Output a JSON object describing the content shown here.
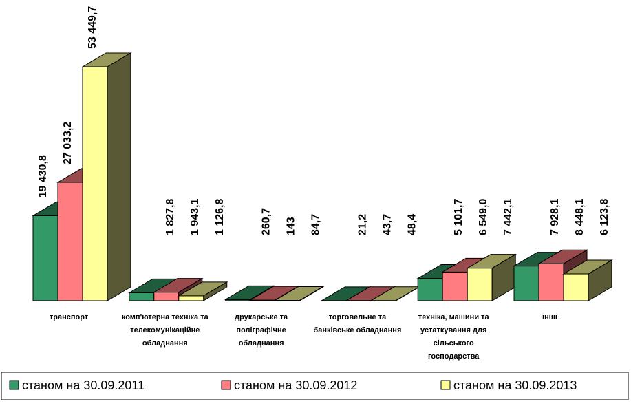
{
  "chart_data": {
    "type": "bar3d",
    "categories": [
      "транспорт",
      "комп'ютерна техніка та телекомунікаційне обладнання",
      "друкарське та поліграфічне обладнання",
      "торговельне та банківське обладнання",
      "техніка, машини та устаткування для сільського господарства",
      "інші"
    ],
    "series": [
      {
        "name": "станом на 30.09.2011",
        "color": "#339966",
        "values": [
          19430.8,
          1827.8,
          260.7,
          21.2,
          5101.7,
          7928.1
        ],
        "value_labels": [
          "19 430,8",
          "1 827,8",
          "260,7",
          "21,2",
          "5 101,7",
          "7 928,1"
        ]
      },
      {
        "name": "станом на 30.09.2012",
        "color": "#ff7c80",
        "values": [
          27033.2,
          1943.1,
          143,
          43.7,
          6549.0,
          8448.1
        ],
        "value_labels": [
          "27 033,2",
          "1 943,1",
          "143",
          "43,7",
          "6 549,0",
          "8 448,1"
        ]
      },
      {
        "name": "станом на 30.09.2013",
        "color": "#ffff99",
        "values": [
          53449.7,
          1126.8,
          84.7,
          48.4,
          7442.1,
          6123.8
        ],
        "value_labels": [
          "53 449,7",
          "1 126,8",
          "84,7",
          "48,4",
          "7 442,1",
          "6 123,8"
        ]
      }
    ],
    "legend": "bottom"
  }
}
